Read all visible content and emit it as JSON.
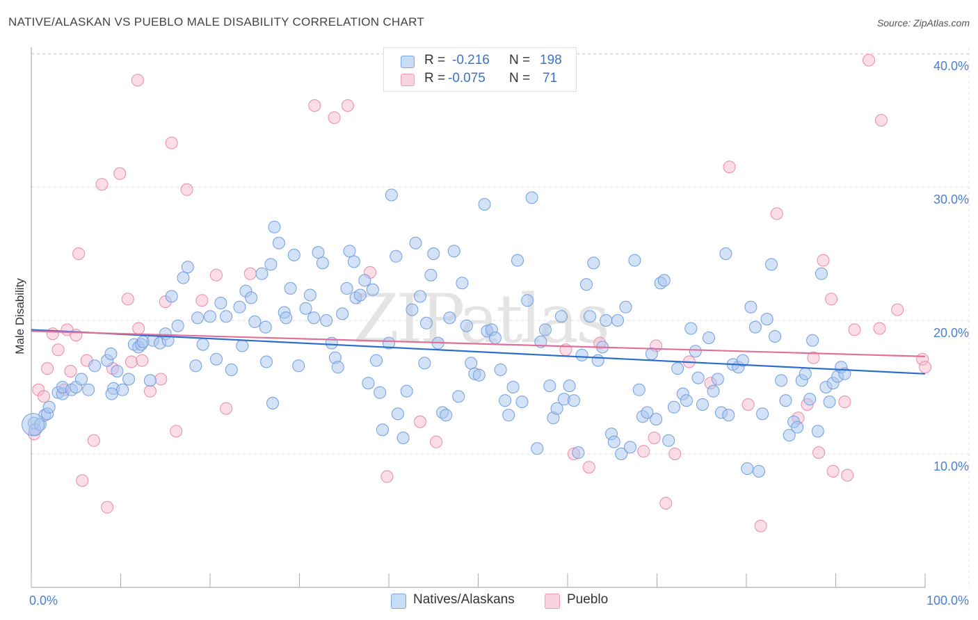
{
  "title": "NATIVE/ALASKAN VS PUEBLO MALE DISABILITY CORRELATION CHART",
  "source": "Source: ZipAtlas.com",
  "watermark": "ZIPatlas",
  "legend": {
    "rows": [
      {
        "r_label": "R =",
        "r_value": "-0.216",
        "n_label": "N =",
        "n_value": "198",
        "color": "#a9c6ef"
      },
      {
        "r_label": "R =",
        "r_value": "-0.075",
        "n_label": "N =",
        "n_value": "71",
        "color": "#f6bcd0"
      }
    ]
  },
  "bottom_legend": {
    "series1": "Natives/Alaskans",
    "series2": "Pueblo"
  },
  "colors": {
    "blue_fill": "#a9c6ef",
    "blue_stroke": "#6f9ee0",
    "blue_line": "#2b6dcc",
    "pink_fill": "#f6bcd0",
    "pink_stroke": "#ea8aaa",
    "pink_line": "#e0709a",
    "tick_label": "#4a7fd0",
    "grid": "#dddddd"
  },
  "chart_data": {
    "type": "scatter",
    "title": "NATIVE/ALASKAN VS PUEBLO MALE DISABILITY CORRELATION CHART",
    "xlabel": "",
    "ylabel": "Male Disability",
    "xlim": [
      0,
      100
    ],
    "ylim": [
      0,
      40
    ],
    "x_tick_labels": [
      "0.0%",
      "100.0%"
    ],
    "y_ticks": [
      10,
      20,
      30,
      40
    ],
    "y_tick_labels": [
      "10.0%",
      "20.0%",
      "30.0%",
      "40.0%"
    ],
    "grid": true,
    "legend_position": "top-center",
    "series": [
      {
        "name": "Natives/Alaskans",
        "r": -0.216,
        "n": 198,
        "trend": [
          [
            0,
            19.3
          ],
          [
            100,
            16.0
          ]
        ],
        "points": [
          [
            0.3,
            12.3
          ],
          [
            0.4,
            11.8
          ],
          [
            1.0,
            12.2
          ],
          [
            1.5,
            12.9
          ],
          [
            1.8,
            13.0
          ],
          [
            2.0,
            13.5
          ],
          [
            3.0,
            14.6
          ],
          [
            3.5,
            14.5
          ],
          [
            3.5,
            15.0
          ],
          [
            4.5,
            14.8
          ],
          [
            5.0,
            15.0
          ],
          [
            5.6,
            15.6
          ],
          [
            6.4,
            14.8
          ],
          [
            7.1,
            16.6
          ],
          [
            8.5,
            17.0
          ],
          [
            8.9,
            17.5
          ],
          [
            9.2,
            14.9
          ],
          [
            9.6,
            16.2
          ],
          [
            10.2,
            14.8
          ],
          [
            10.9,
            15.6
          ],
          [
            11.5,
            18.2
          ],
          [
            12.0,
            18.0
          ],
          [
            12.3,
            18.2
          ],
          [
            13.3,
            15.5
          ],
          [
            13.6,
            18.5
          ],
          [
            14.4,
            18.3
          ],
          [
            15.0,
            19.0
          ],
          [
            15.3,
            18.5
          ],
          [
            15.7,
            21.8
          ],
          [
            16.4,
            19.6
          ],
          [
            17.0,
            23.2
          ],
          [
            17.5,
            24.0
          ],
          [
            18.4,
            16.6
          ],
          [
            18.6,
            20.2
          ],
          [
            19.2,
            18.2
          ],
          [
            20.0,
            20.3
          ],
          [
            20.7,
            17.1
          ],
          [
            21.2,
            21.3
          ],
          [
            21.8,
            20.3
          ],
          [
            22.4,
            16.3
          ],
          [
            23.3,
            21.0
          ],
          [
            23.6,
            18.1
          ],
          [
            24.0,
            22.2
          ],
          [
            24.6,
            21.7
          ],
          [
            25.0,
            19.9
          ],
          [
            25.8,
            23.5
          ],
          [
            26.2,
            19.5
          ],
          [
            26.3,
            16.9
          ],
          [
            26.8,
            24.2
          ],
          [
            27.2,
            27.0
          ],
          [
            27.7,
            25.8
          ],
          [
            28.3,
            20.6
          ],
          [
            28.5,
            20.2
          ],
          [
            29.0,
            22.4
          ],
          [
            29.4,
            24.9
          ],
          [
            29.9,
            16.6
          ],
          [
            30.7,
            20.9
          ],
          [
            31.2,
            21.9
          ],
          [
            31.6,
            20.2
          ],
          [
            32.1,
            25.1
          ],
          [
            32.6,
            24.3
          ],
          [
            33.0,
            20.0
          ],
          [
            33.6,
            18.3
          ],
          [
            34.0,
            17.2
          ],
          [
            34.3,
            16.5
          ],
          [
            34.8,
            20.5
          ],
          [
            35.3,
            22.4
          ],
          [
            35.6,
            25.2
          ],
          [
            36.1,
            24.4
          ],
          [
            36.3,
            21.7
          ],
          [
            36.8,
            21.9
          ],
          [
            37.3,
            23.0
          ],
          [
            37.7,
            15.3
          ],
          [
            38.2,
            22.3
          ],
          [
            38.6,
            17.0
          ],
          [
            39.0,
            14.6
          ],
          [
            39.3,
            11.8
          ],
          [
            40.0,
            18.3
          ],
          [
            40.3,
            29.4
          ],
          [
            40.8,
            24.8
          ],
          [
            41.0,
            13.0
          ],
          [
            41.6,
            11.2
          ],
          [
            42.0,
            14.7
          ],
          [
            42.6,
            20.8
          ],
          [
            43.0,
            25.8
          ],
          [
            43.5,
            21.8
          ],
          [
            44.0,
            16.8
          ],
          [
            44.2,
            19.8
          ],
          [
            44.7,
            23.4
          ],
          [
            45.0,
            25.0
          ],
          [
            45.5,
            18.3
          ],
          [
            46.0,
            13.1
          ],
          [
            46.4,
            12.9
          ],
          [
            46.8,
            20.2
          ],
          [
            47.3,
            25.2
          ],
          [
            47.8,
            14.3
          ],
          [
            48.2,
            22.8
          ],
          [
            48.7,
            19.6
          ],
          [
            49.2,
            16.8
          ],
          [
            49.6,
            16.0
          ],
          [
            50.1,
            15.9
          ],
          [
            50.7,
            28.7
          ],
          [
            51.0,
            19.2
          ],
          [
            51.5,
            19.3
          ],
          [
            51.9,
            18.7
          ],
          [
            52.5,
            16.3
          ],
          [
            53.0,
            14.0
          ],
          [
            53.4,
            12.9
          ],
          [
            53.9,
            15.0
          ],
          [
            54.4,
            24.5
          ],
          [
            54.9,
            13.9
          ],
          [
            55.5,
            21.5
          ],
          [
            56.0,
            29.2
          ],
          [
            56.6,
            10.4
          ],
          [
            57.0,
            18.4
          ],
          [
            57.5,
            19.3
          ],
          [
            58.0,
            15.1
          ],
          [
            58.4,
            12.7
          ],
          [
            58.8,
            13.4
          ],
          [
            59.3,
            20.3
          ],
          [
            59.6,
            14.1
          ],
          [
            60.2,
            15.1
          ],
          [
            60.7,
            14.0
          ],
          [
            61.2,
            10.1
          ],
          [
            61.6,
            17.4
          ],
          [
            62.1,
            22.7
          ],
          [
            62.5,
            20.3
          ],
          [
            62.9,
            24.3
          ],
          [
            63.4,
            17.0
          ],
          [
            63.9,
            18.0
          ],
          [
            64.3,
            20.0
          ],
          [
            64.9,
            11.5
          ],
          [
            65.2,
            10.9
          ],
          [
            65.6,
            20.0
          ],
          [
            66.0,
            10.0
          ],
          [
            66.5,
            21.0
          ],
          [
            67.0,
            10.5
          ],
          [
            67.5,
            24.5
          ],
          [
            68.0,
            14.8
          ],
          [
            68.4,
            12.8
          ],
          [
            68.9,
            13.1
          ],
          [
            69.4,
            17.5
          ],
          [
            69.9,
            12.6
          ],
          [
            70.4,
            22.8
          ],
          [
            70.8,
            23.0
          ],
          [
            71.3,
            11.0
          ],
          [
            71.9,
            13.5
          ],
          [
            72.3,
            16.4
          ],
          [
            72.9,
            14.5
          ],
          [
            73.3,
            14.0
          ],
          [
            73.8,
            19.4
          ],
          [
            74.3,
            17.7
          ],
          [
            74.6,
            15.7
          ],
          [
            75.1,
            13.7
          ],
          [
            75.8,
            18.7
          ],
          [
            76.3,
            14.7
          ],
          [
            76.8,
            15.6
          ],
          [
            77.2,
            13.1
          ],
          [
            77.7,
            25.0
          ],
          [
            78.0,
            12.9
          ],
          [
            78.5,
            16.7
          ],
          [
            79.1,
            16.5
          ],
          [
            79.6,
            17.0
          ],
          [
            80.1,
            8.9
          ],
          [
            80.5,
            21.0
          ],
          [
            81.0,
            19.5
          ],
          [
            81.4,
            8.7
          ],
          [
            81.8,
            13.0
          ],
          [
            82.3,
            20.1
          ],
          [
            82.8,
            24.2
          ],
          [
            83.2,
            18.8
          ],
          [
            83.9,
            15.5
          ],
          [
            84.4,
            14.0
          ],
          [
            84.8,
            11.4
          ],
          [
            85.3,
            12.4
          ],
          [
            85.7,
            12.0
          ],
          [
            86.2,
            15.5
          ],
          [
            86.6,
            16.0
          ],
          [
            87.1,
            14.1
          ],
          [
            87.4,
            18.5
          ],
          [
            88.0,
            11.7
          ],
          [
            88.4,
            23.5
          ],
          [
            88.9,
            15.0
          ],
          [
            89.3,
            13.9
          ],
          [
            89.7,
            15.3
          ],
          [
            90.2,
            15.8
          ],
          [
            90.6,
            16.5
          ],
          [
            91.0,
            16.0
          ],
          [
            9.0,
            14.5
          ],
          [
            12.5,
            18.4
          ],
          [
            27.0,
            13.8
          ]
        ]
      },
      {
        "name": "Pueblo",
        "r": -0.075,
        "n": 71,
        "trend": [
          [
            0,
            19.2
          ],
          [
            100,
            17.3
          ]
        ],
        "points": [
          [
            0.3,
            11.5
          ],
          [
            0.8,
            14.8
          ],
          [
            1.4,
            14.3
          ],
          [
            1.8,
            16.4
          ],
          [
            2.4,
            19.0
          ],
          [
            3.0,
            17.8
          ],
          [
            3.7,
            14.8
          ],
          [
            4.0,
            19.3
          ],
          [
            4.4,
            16.2
          ],
          [
            5.0,
            18.9
          ],
          [
            5.3,
            25.0
          ],
          [
            5.7,
            8.0
          ],
          [
            6.2,
            17.0
          ],
          [
            7.0,
            11.0
          ],
          [
            7.9,
            30.2
          ],
          [
            8.5,
            6.0
          ],
          [
            9.1,
            16.4
          ],
          [
            9.9,
            31.0
          ],
          [
            10.8,
            21.6
          ],
          [
            11.2,
            16.9
          ],
          [
            11.9,
            38.0
          ],
          [
            12.0,
            19.4
          ],
          [
            12.4,
            17.0
          ],
          [
            13.3,
            14.7
          ],
          [
            14.5,
            15.6
          ],
          [
            15.0,
            21.4
          ],
          [
            15.7,
            33.3
          ],
          [
            16.2,
            11.7
          ],
          [
            17.4,
            29.8
          ],
          [
            19.1,
            21.5
          ],
          [
            20.7,
            23.4
          ],
          [
            21.8,
            13.4
          ],
          [
            24.5,
            23.5
          ],
          [
            31.7,
            36.1
          ],
          [
            33.9,
            35.2
          ],
          [
            35.4,
            36.1
          ],
          [
            37.9,
            23.6
          ],
          [
            39.8,
            8.3
          ],
          [
            43.5,
            12.4
          ],
          [
            45.3,
            10.9
          ],
          [
            59.8,
            17.8
          ],
          [
            60.7,
            10.0
          ],
          [
            62.4,
            9.0
          ],
          [
            63.6,
            18.3
          ],
          [
            68.5,
            10.2
          ],
          [
            69.7,
            11.2
          ],
          [
            69.9,
            18.1
          ],
          [
            71.0,
            6.3
          ],
          [
            72.0,
            10.0
          ],
          [
            73.6,
            16.9
          ],
          [
            76.0,
            15.3
          ],
          [
            78.1,
            31.5
          ],
          [
            80.2,
            13.7
          ],
          [
            81.6,
            4.6
          ],
          [
            83.4,
            28.0
          ],
          [
            85.8,
            12.7
          ],
          [
            86.8,
            13.7
          ],
          [
            87.5,
            17.2
          ],
          [
            88.1,
            10.1
          ],
          [
            88.6,
            24.5
          ],
          [
            89.5,
            21.6
          ],
          [
            89.7,
            8.7
          ],
          [
            91.0,
            13.9
          ],
          [
            91.3,
            8.4
          ],
          [
            92.1,
            19.3
          ],
          [
            93.7,
            39.5
          ],
          [
            94.9,
            19.4
          ],
          [
            95.1,
            35.0
          ],
          [
            96.9,
            20.8
          ],
          [
            99.7,
            17.1
          ],
          [
            100.0,
            16.5
          ]
        ]
      }
    ]
  }
}
